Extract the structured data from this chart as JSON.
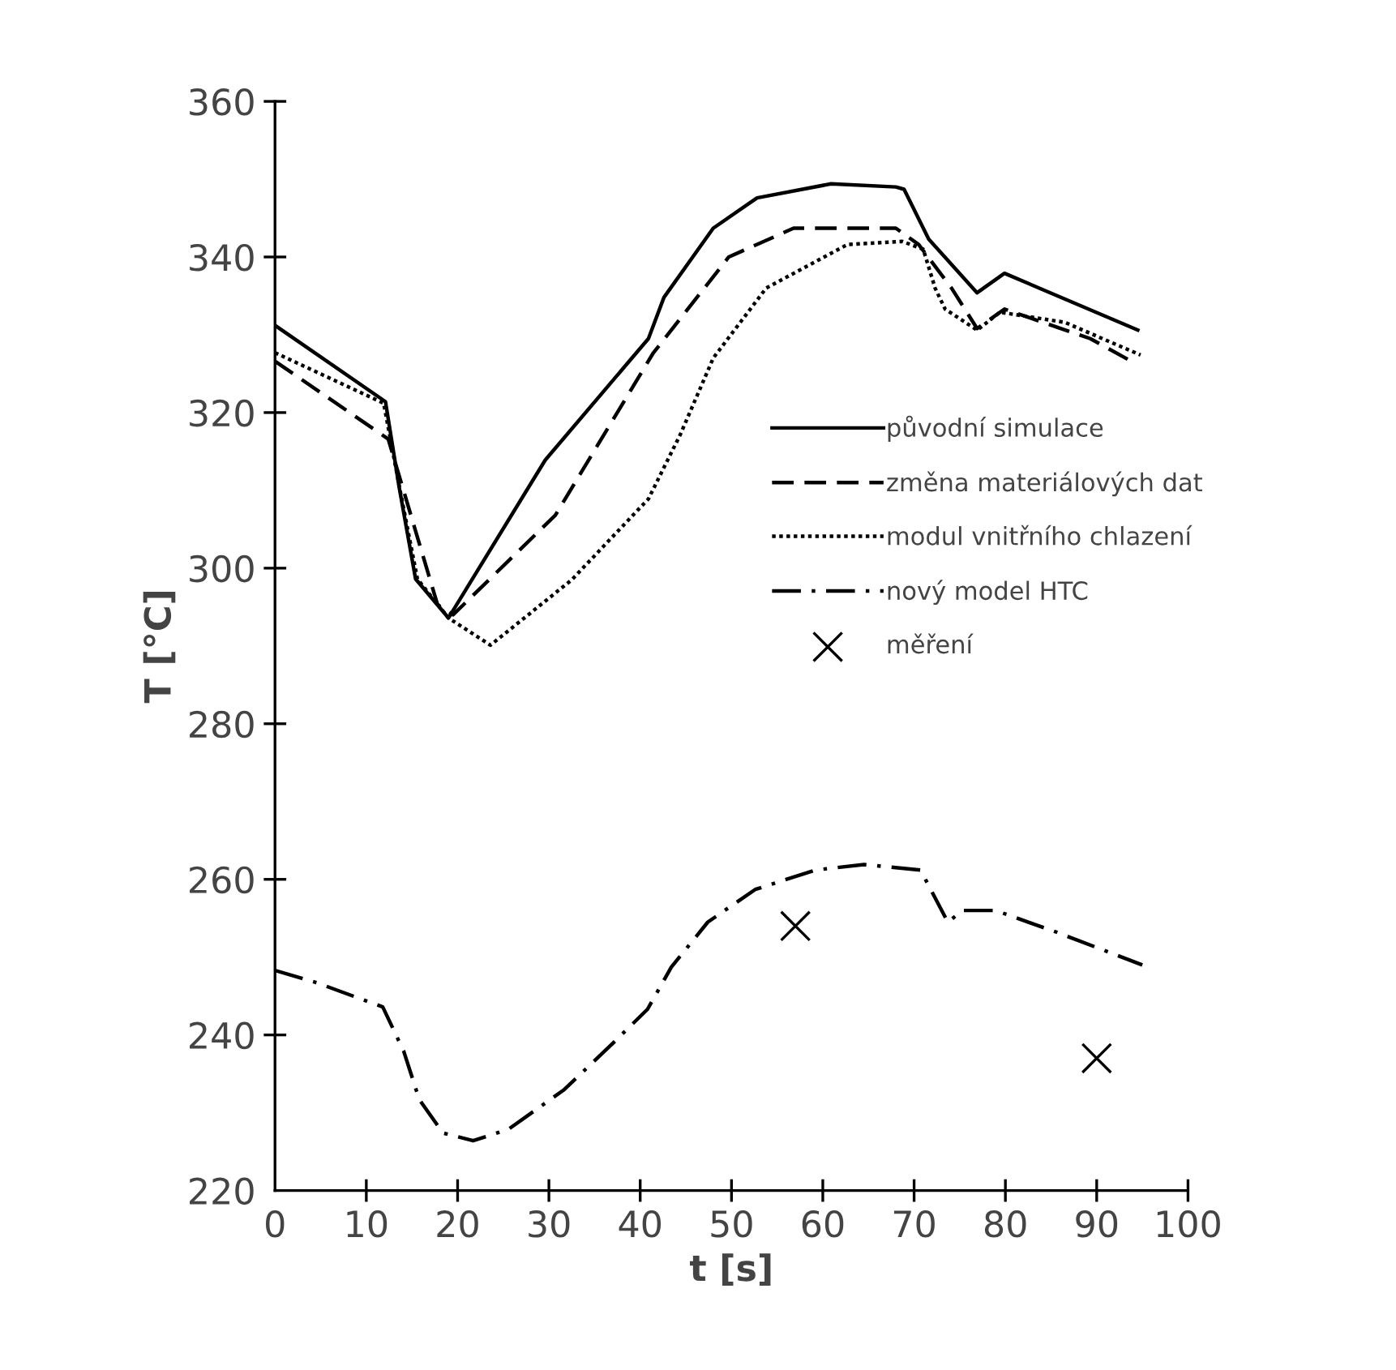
{
  "chart_data": {
    "type": "line",
    "xlabel": "t [s]",
    "ylabel": "T [°C]",
    "xlim": [
      0,
      100
    ],
    "ylim": [
      220,
      360
    ],
    "xticks": [
      0,
      10,
      20,
      30,
      40,
      50,
      60,
      70,
      80,
      90,
      100
    ],
    "yticks": [
      220,
      240,
      260,
      280,
      300,
      320,
      340,
      360
    ],
    "grid": false,
    "legend": "right",
    "series": [
      {
        "name": "původní simulace",
        "color": "#000000",
        "line_style": "solid",
        "x": [
          0,
          12.1,
          13.6,
          15.4,
          19.0,
          29.6,
          40.9,
          42.6,
          48,
          52.8,
          60.9,
          68,
          68.9,
          71.6,
          76.9,
          79.9,
          94.5
        ],
        "values": [
          331.2,
          321.4,
          310.4,
          298.6,
          293.6,
          313.9,
          329.5,
          334.8,
          343.7,
          347.6,
          349.4,
          349,
          348.7,
          342.3,
          335.4,
          337.9,
          330.6
        ]
      },
      {
        "name": "změna materiálových dat",
        "color": "#000000",
        "line_style": "dashed",
        "x": [
          0,
          12.4,
          17.8,
          19.5,
          30.7,
          41.4,
          49.7,
          56.8,
          68,
          70.5,
          74.1,
          76.9,
          79.9,
          89.3,
          94.1
        ],
        "values": [
          326.6,
          316.6,
          295.3,
          294,
          306.8,
          327.6,
          340,
          343.7,
          343.7,
          341.6,
          336,
          330.8,
          333.3,
          329.5,
          326.4
        ]
      },
      {
        "name": "modul vnitřního chlazení",
        "color": "#000000",
        "line_style": "dotted",
        "x": [
          0,
          11.9,
          13.7,
          15.6,
          19,
          23.6,
          32.5,
          40.9,
          44.4,
          48,
          53.8,
          62.7,
          68.7,
          71,
          72.3,
          73.4,
          76.9,
          79.4,
          86.5,
          94.8
        ],
        "values": [
          327.7,
          321.2,
          310,
          298.6,
          293.6,
          290.1,
          298.5,
          308.9,
          317.2,
          327,
          336,
          341.6,
          342,
          341,
          336,
          333.3,
          330.6,
          332.9,
          331.6,
          327.4
        ]
      },
      {
        "name": "nový model HTC",
        "color": "#000000",
        "line_style": "dashdot",
        "x": [
          0,
          4.6,
          11.8,
          14.1,
          15.8,
          18.4,
          21.7,
          25.6,
          31.6,
          36.8,
          40.8,
          43.4,
          47.4,
          52.6,
          59.2,
          64.5,
          70.7,
          73.7,
          75.3,
          78.9,
          85.4,
          95
        ],
        "values": [
          248.3,
          246.7,
          243.6,
          237.9,
          231.7,
          227.4,
          226.4,
          227.9,
          232.9,
          238.7,
          243.3,
          248.7,
          254.5,
          258.7,
          261.2,
          261.9,
          261.2,
          254.5,
          256,
          256,
          253.3,
          249
        ]
      },
      {
        "name": "měření",
        "type": "scatter",
        "marker": "cross",
        "color": "#000000",
        "x": [
          57,
          90
        ],
        "values": [
          254,
          237
        ]
      }
    ]
  }
}
